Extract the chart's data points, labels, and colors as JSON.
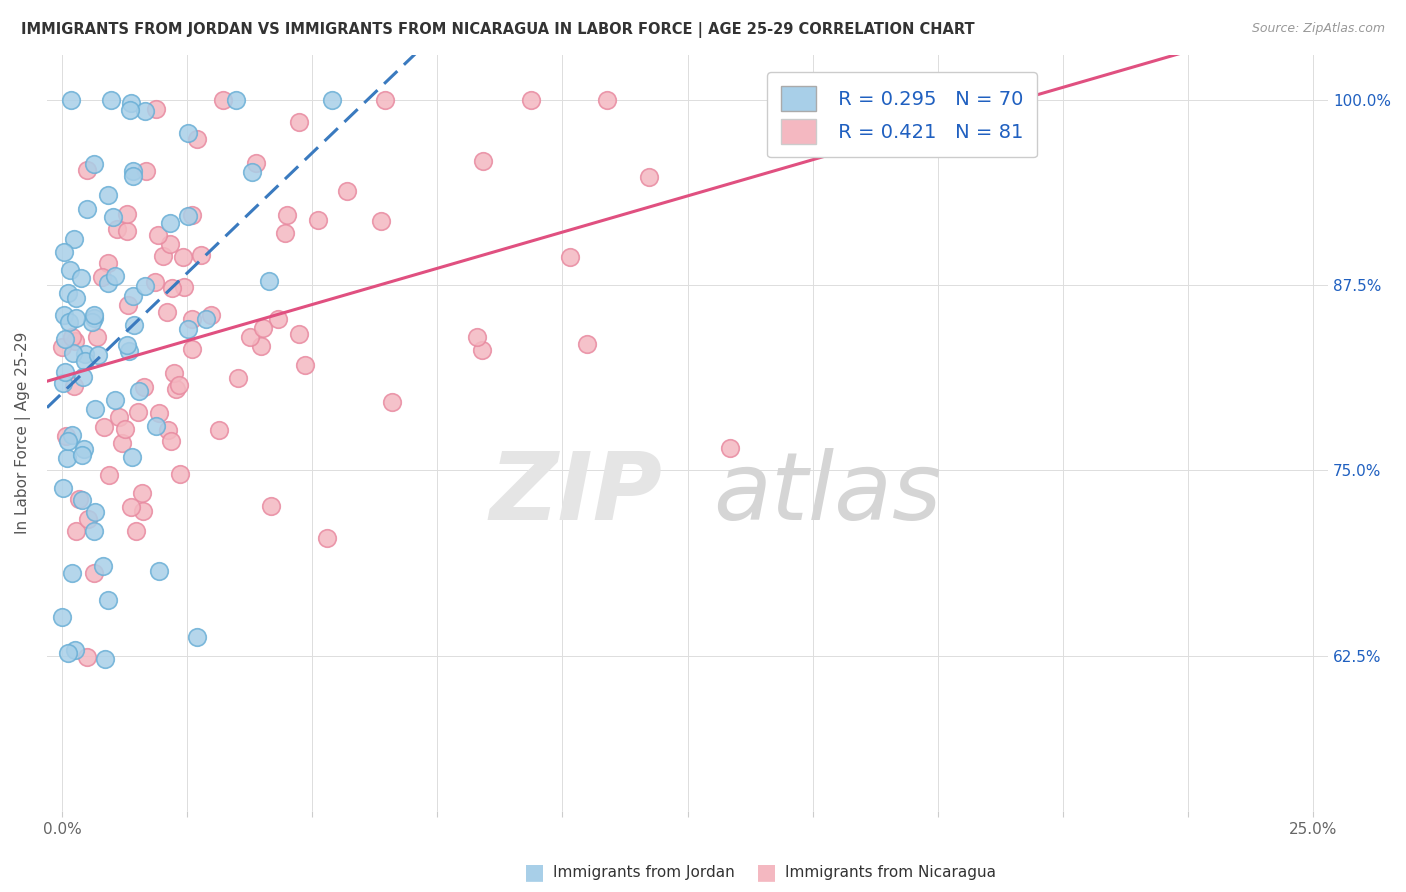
{
  "title": "IMMIGRANTS FROM JORDAN VS IMMIGRANTS FROM NICARAGUA IN LABOR FORCE | AGE 25-29 CORRELATION CHART",
  "source": "Source: ZipAtlas.com",
  "ylabel": "In Labor Force | Age 25-29",
  "xmin": -0.003,
  "xmax": 0.253,
  "ymin": 0.52,
  "ymax": 1.03,
  "ytick_vals": [
    0.625,
    0.75,
    0.875,
    1.0
  ],
  "ytick_labels": [
    "62.5%",
    "75.0%",
    "87.5%",
    "100.0%"
  ],
  "xtick_vals": [
    0.0,
    0.025,
    0.05,
    0.075,
    0.1,
    0.125,
    0.15,
    0.175,
    0.2,
    0.225,
    0.25
  ],
  "xtick_labels": [
    "0.0%",
    "",
    "",
    "",
    "",
    "",
    "",
    "",
    "",
    "",
    "25.0%"
  ],
  "jordan_color": "#a8cfe8",
  "nicaragua_color": "#f4b8c1",
  "jordan_edge_color": "#6aafd6",
  "nicaragua_edge_color": "#e88aa0",
  "jordan_line_color": "#3a7abf",
  "nicaragua_line_color": "#e05080",
  "jordan_R": 0.295,
  "jordan_N": 70,
  "nicaragua_R": 0.421,
  "nicaragua_N": 81,
  "legend_R_color": "#2060c0",
  "legend_N_color": "#e05050"
}
